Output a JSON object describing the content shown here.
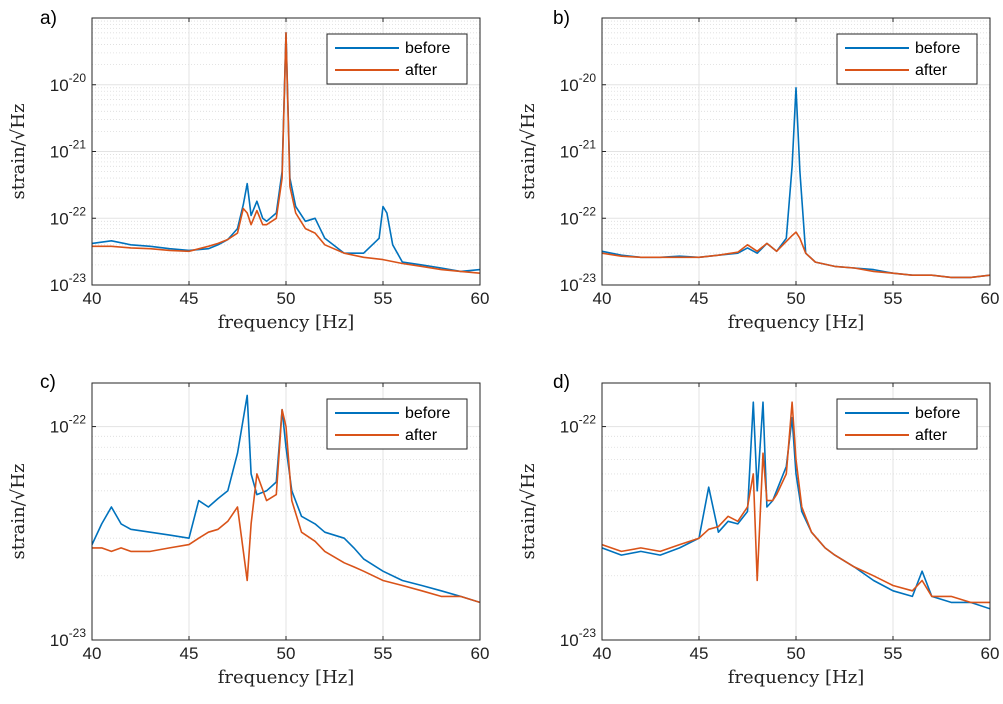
{
  "colors": {
    "before": "#0072BD",
    "after": "#D95319",
    "grid": "#e3e3e3",
    "axis": "#262626"
  },
  "chart_data": [
    {
      "panel": "a)",
      "type": "line",
      "xlabel": "frequency [Hz]",
      "ylabel": "strain/√Hz",
      "xlim": [
        40,
        60
      ],
      "ylim": [
        1e-23,
        1e-19
      ],
      "yscale": "log",
      "xticks": [
        40,
        45,
        50,
        55,
        60
      ],
      "yticks": [
        1e-23,
        1e-22,
        1e-21,
        1e-20
      ],
      "ytick_labels": [
        {
          "base": "10",
          "exp": "-23"
        },
        {
          "base": "10",
          "exp": "-22"
        },
        {
          "base": "10",
          "exp": "-21"
        },
        {
          "base": "10",
          "exp": "-20"
        }
      ],
      "grid": true,
      "legend": "top-right",
      "series": [
        {
          "name": "before",
          "x": [
            40,
            41,
            42,
            43,
            44,
            45,
            46,
            46.5,
            47,
            47.5,
            47.8,
            48,
            48.2,
            48.5,
            48.8,
            49,
            49.5,
            49.8,
            50,
            50.2,
            50.5,
            51,
            51.5,
            52,
            53,
            54,
            54.8,
            55,
            55.2,
            55.5,
            56,
            57,
            58,
            59,
            60
          ],
          "y": [
            4.2e-23,
            4.6e-23,
            4e-23,
            3.8e-23,
            3.5e-23,
            3.3e-23,
            3.5e-23,
            4e-23,
            4.8e-23,
            7e-23,
            1.6e-22,
            3.3e-22,
            1.1e-22,
            1.8e-22,
            1e-22,
            9e-23,
            1.2e-22,
            5e-22,
            6e-20,
            4e-22,
            1.5e-22,
            9e-23,
            1e-22,
            5e-23,
            3e-23,
            3e-23,
            5e-23,
            1.5e-22,
            1.2e-22,
            4e-23,
            2.2e-23,
            2e-23,
            1.8e-23,
            1.6e-23,
            1.7e-23
          ]
        },
        {
          "name": "after",
          "x": [
            40,
            41,
            42,
            43,
            44,
            45,
            46,
            46.5,
            47,
            47.5,
            47.8,
            48,
            48.2,
            48.5,
            48.8,
            49,
            49.5,
            49.8,
            50,
            50.2,
            50.5,
            51,
            51.5,
            52,
            53,
            54,
            55,
            56,
            57,
            58,
            59,
            60
          ],
          "y": [
            3.8e-23,
            3.8e-23,
            3.6e-23,
            3.5e-23,
            3.3e-23,
            3.2e-23,
            3.8e-23,
            4.2e-23,
            4.8e-23,
            6e-23,
            1.4e-22,
            1.2e-22,
            8e-23,
            1.3e-22,
            8e-23,
            8e-23,
            1e-22,
            4e-22,
            6e-20,
            3e-22,
            1.2e-22,
            7e-23,
            6e-23,
            4e-23,
            3e-23,
            2.6e-23,
            2.4e-23,
            2.1e-23,
            1.9e-23,
            1.7e-23,
            1.6e-23,
            1.5e-23
          ]
        }
      ]
    },
    {
      "panel": "b)",
      "type": "line",
      "xlabel": "frequency [Hz]",
      "ylabel": "strain/√Hz",
      "xlim": [
        40,
        60
      ],
      "ylim": [
        1e-23,
        1e-19
      ],
      "yscale": "log",
      "xticks": [
        40,
        45,
        50,
        55,
        60
      ],
      "yticks": [
        1e-23,
        1e-22,
        1e-21,
        1e-20
      ],
      "ytick_labels": [
        {
          "base": "10",
          "exp": "-23"
        },
        {
          "base": "10",
          "exp": "-22"
        },
        {
          "base": "10",
          "exp": "-21"
        },
        {
          "base": "10",
          "exp": "-20"
        }
      ],
      "grid": true,
      "legend": "top-right",
      "series": [
        {
          "name": "before",
          "x": [
            40,
            41,
            42,
            43,
            44,
            45,
            46,
            47,
            47.5,
            48,
            48.5,
            49,
            49.5,
            49.8,
            50,
            50.2,
            50.5,
            51,
            52,
            53,
            54,
            55,
            56,
            57,
            58,
            59,
            60
          ],
          "y": [
            3.2e-23,
            2.8e-23,
            2.6e-23,
            2.6e-23,
            2.7e-23,
            2.6e-23,
            2.8e-23,
            3e-23,
            3.6e-23,
            3e-23,
            4.2e-23,
            3.2e-23,
            5e-23,
            6e-22,
            9e-21,
            5e-22,
            3e-23,
            2.2e-23,
            1.9e-23,
            1.8e-23,
            1.7e-23,
            1.5e-23,
            1.4e-23,
            1.4e-23,
            1.3e-23,
            1.3e-23,
            1.4e-23
          ]
        },
        {
          "name": "after",
          "x": [
            40,
            41,
            42,
            43,
            44,
            45,
            46,
            47,
            47.5,
            48,
            48.5,
            49,
            49.5,
            49.8,
            50,
            50.2,
            50.5,
            51,
            52,
            53,
            54,
            55,
            56,
            57,
            58,
            59,
            60
          ],
          "y": [
            3e-23,
            2.7e-23,
            2.6e-23,
            2.6e-23,
            2.6e-23,
            2.6e-23,
            2.8e-23,
            3.1e-23,
            4e-23,
            3.2e-23,
            4.2e-23,
            3.2e-23,
            4.5e-23,
            5.5e-23,
            6.2e-23,
            5e-23,
            3e-23,
            2.2e-23,
            1.9e-23,
            1.8e-23,
            1.6e-23,
            1.5e-23,
            1.4e-23,
            1.4e-23,
            1.3e-23,
            1.3e-23,
            1.4e-23
          ]
        }
      ]
    },
    {
      "panel": "c)",
      "type": "line",
      "xlabel": "frequency [Hz]",
      "ylabel": "strain/√Hz",
      "xlim": [
        40,
        60
      ],
      "ylim": [
        1e-23,
        1.6e-22
      ],
      "yscale": "log",
      "xticks": [
        40,
        45,
        50,
        55,
        60
      ],
      "yticks": [
        1e-23,
        1e-22
      ],
      "ytick_labels": [
        {
          "base": "10",
          "exp": "-23"
        },
        {
          "base": "10",
          "exp": "-22"
        }
      ],
      "grid": true,
      "legend": "top-right",
      "series": [
        {
          "name": "before",
          "x": [
            40,
            40.5,
            41,
            41.5,
            42,
            43,
            44,
            45,
            45.5,
            46,
            46.5,
            47,
            47.5,
            48,
            48.2,
            48.5,
            49,
            49.5,
            49.8,
            50,
            50.3,
            50.8,
            51.5,
            52,
            53,
            53.5,
            54,
            55,
            56,
            57,
            58,
            59,
            60
          ],
          "y": [
            2.8e-23,
            3.5e-23,
            4.2e-23,
            3.5e-23,
            3.3e-23,
            3.2e-23,
            3.1e-23,
            3e-23,
            4.5e-23,
            4.2e-23,
            4.6e-23,
            5e-23,
            7.5e-23,
            1.4e-22,
            6e-23,
            4.8e-23,
            5e-23,
            5.5e-23,
            1.2e-22,
            8e-23,
            5e-23,
            3.8e-23,
            3.5e-23,
            3.2e-23,
            3e-23,
            2.7e-23,
            2.4e-23,
            2.1e-23,
            1.9e-23,
            1.8e-23,
            1.7e-23,
            1.6e-23,
            1.5e-23
          ]
        },
        {
          "name": "after",
          "x": [
            40,
            40.5,
            41,
            41.5,
            42,
            43,
            44,
            45,
            45.5,
            46,
            46.5,
            47,
            47.5,
            48,
            48.2,
            48.5,
            49,
            49.5,
            49.8,
            50,
            50.3,
            50.8,
            51.5,
            52,
            53,
            53.5,
            54,
            55,
            56,
            57,
            58,
            59,
            60
          ],
          "y": [
            2.7e-23,
            2.7e-23,
            2.6e-23,
            2.7e-23,
            2.6e-23,
            2.6e-23,
            2.7e-23,
            2.8e-23,
            3e-23,
            3.2e-23,
            3.3e-23,
            3.6e-23,
            4.2e-23,
            1.9e-23,
            3.5e-23,
            6e-23,
            4.5e-23,
            4.8e-23,
            1.2e-22,
            1e-22,
            4.5e-23,
            3.2e-23,
            2.9e-23,
            2.6e-23,
            2.3e-23,
            2.2e-23,
            2.1e-23,
            1.9e-23,
            1.8e-23,
            1.7e-23,
            1.6e-23,
            1.6e-23,
            1.5e-23
          ]
        }
      ]
    },
    {
      "panel": "d)",
      "type": "line",
      "xlabel": "frequency [Hz]",
      "ylabel": "strain/√Hz",
      "xlim": [
        40,
        60
      ],
      "ylim": [
        1e-23,
        1.6e-22
      ],
      "yscale": "log",
      "xticks": [
        40,
        45,
        50,
        55,
        60
      ],
      "yticks": [
        1e-23,
        1e-22
      ],
      "ytick_labels": [
        {
          "base": "10",
          "exp": "-23"
        },
        {
          "base": "10",
          "exp": "-22"
        }
      ],
      "grid": true,
      "legend": "top-right",
      "series": [
        {
          "name": "before",
          "x": [
            40,
            41,
            42,
            43,
            44,
            45,
            45.5,
            46,
            46.5,
            47,
            47.5,
            47.8,
            48,
            48.3,
            48.5,
            48.8,
            49,
            49.5,
            49.8,
            50,
            50.3,
            50.8,
            51.5,
            52,
            53,
            54,
            55,
            56,
            56.5,
            57,
            58,
            59,
            60
          ],
          "y": [
            2.7e-23,
            2.5e-23,
            2.6e-23,
            2.5e-23,
            2.7e-23,
            3e-23,
            5.2e-23,
            3.2e-23,
            3.6e-23,
            3.5e-23,
            4e-23,
            1.3e-22,
            5e-23,
            1.3e-22,
            4.2e-23,
            4.5e-23,
            5e-23,
            6.5e-23,
            1.1e-22,
            6e-23,
            4e-23,
            3.2e-23,
            2.7e-23,
            2.5e-23,
            2.2e-23,
            1.9e-23,
            1.7e-23,
            1.6e-23,
            2.1e-23,
            1.6e-23,
            1.5e-23,
            1.5e-23,
            1.4e-23
          ]
        },
        {
          "name": "after",
          "x": [
            40,
            41,
            42,
            43,
            44,
            45,
            45.5,
            46,
            46.5,
            47,
            47.5,
            47.8,
            48,
            48.3,
            48.5,
            48.8,
            49,
            49.5,
            49.8,
            50,
            50.3,
            50.8,
            51.5,
            52,
            53,
            54,
            55,
            56,
            56.5,
            57,
            58,
            59,
            60
          ],
          "y": [
            2.8e-23,
            2.6e-23,
            2.7e-23,
            2.6e-23,
            2.8e-23,
            3e-23,
            3.3e-23,
            3.4e-23,
            3.8e-23,
            3.6e-23,
            4.2e-23,
            6e-23,
            1.9e-23,
            7.5e-23,
            4.5e-23,
            4.5e-23,
            4.8e-23,
            6e-23,
            1.3e-22,
            7e-23,
            4.2e-23,
            3.2e-23,
            2.7e-23,
            2.5e-23,
            2.2e-23,
            2e-23,
            1.8e-23,
            1.7e-23,
            1.9e-23,
            1.6e-23,
            1.6e-23,
            1.5e-23,
            1.5e-23
          ]
        }
      ]
    }
  ]
}
